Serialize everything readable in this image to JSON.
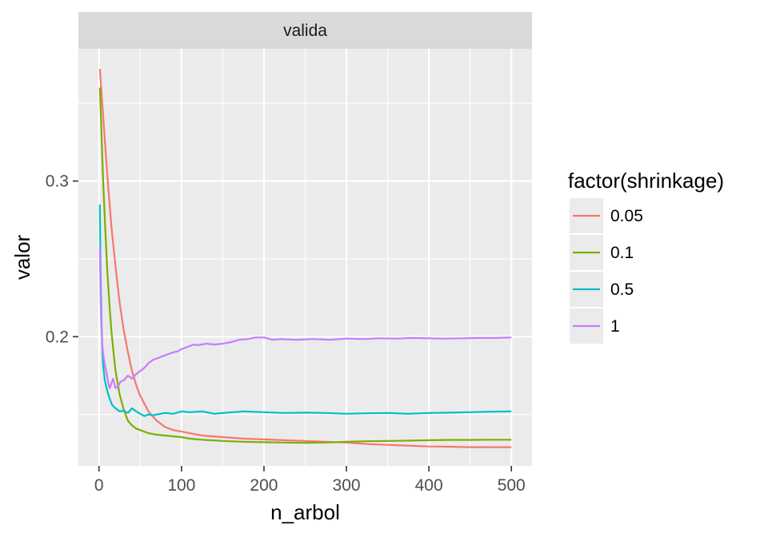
{
  "chart_data": {
    "type": "line",
    "facet_label": "valida",
    "xlabel": "n_arbol",
    "ylabel": "valor",
    "xlim": [
      -25,
      525
    ],
    "ylim": [
      0.117,
      0.385
    ],
    "x_ticks": [
      0,
      100,
      200,
      300,
      400,
      500
    ],
    "y_ticks": [
      0.2,
      0.3
    ],
    "y_minor_ticks": [
      0.15,
      0.25,
      0.35
    ],
    "x_minor_ticks": [
      50,
      150,
      250,
      350,
      450
    ],
    "grid": true,
    "legend_title": "factor(shrinkage)",
    "legend_position": "right",
    "panel_background": "#ebebeb",
    "strip_background": "#d9d9d9",
    "series": [
      {
        "name": "0.05",
        "color": "#F8766D",
        "x": [
          1,
          5,
          10,
          15,
          20,
          25,
          30,
          35,
          40,
          45,
          50,
          60,
          70,
          80,
          90,
          100,
          110,
          125,
          150,
          175,
          200,
          225,
          250,
          275,
          300,
          325,
          350,
          375,
          400,
          425,
          450,
          475,
          500
        ],
        "y": [
          0.372,
          0.342,
          0.304,
          0.271,
          0.245,
          0.222,
          0.204,
          0.19,
          0.178,
          0.169,
          0.162,
          0.152,
          0.146,
          0.142,
          0.14,
          0.139,
          0.138,
          0.1365,
          0.1355,
          0.1345,
          0.134,
          0.1335,
          0.133,
          0.1325,
          0.132,
          0.131,
          0.1305,
          0.13,
          0.1295,
          0.1293,
          0.129,
          0.129,
          0.129
        ]
      },
      {
        "name": "0.1",
        "color": "#7CAE00",
        "x": [
          1,
          3,
          5,
          8,
          10,
          13,
          15,
          18,
          20,
          25,
          30,
          35,
          40,
          45,
          50,
          60,
          70,
          80,
          90,
          100,
          110,
          125,
          150,
          175,
          200,
          225,
          250,
          275,
          300,
          325,
          350,
          375,
          400,
          425,
          450,
          475,
          500
        ],
        "y": [
          0.36,
          0.33,
          0.3,
          0.265,
          0.242,
          0.218,
          0.204,
          0.188,
          0.178,
          0.163,
          0.153,
          0.146,
          0.143,
          0.141,
          0.14,
          0.138,
          0.137,
          0.1365,
          0.136,
          0.1355,
          0.1345,
          0.1338,
          0.133,
          0.1325,
          0.1322,
          0.132,
          0.1318,
          0.132,
          0.1325,
          0.1328,
          0.133,
          0.1332,
          0.1335,
          0.1337,
          0.1337,
          0.1338,
          0.1338
        ]
      },
      {
        "name": "0.5",
        "color": "#00BFC4",
        "x": [
          1,
          2,
          3,
          4,
          5,
          7,
          10,
          13,
          16,
          20,
          25,
          30,
          35,
          40,
          45,
          50,
          55,
          60,
          65,
          70,
          80,
          90,
          100,
          110,
          125,
          140,
          150,
          175,
          200,
          225,
          250,
          275,
          300,
          325,
          350,
          375,
          400,
          425,
          450,
          475,
          500
        ],
        "y": [
          0.285,
          0.24,
          0.21,
          0.192,
          0.182,
          0.172,
          0.165,
          0.16,
          0.156,
          0.154,
          0.152,
          0.1525,
          0.151,
          0.154,
          0.152,
          0.1505,
          0.149,
          0.15,
          0.1495,
          0.15,
          0.151,
          0.1505,
          0.152,
          0.1515,
          0.152,
          0.1505,
          0.151,
          0.152,
          0.1515,
          0.151,
          0.1512,
          0.151,
          0.1505,
          0.1508,
          0.151,
          0.1505,
          0.151,
          0.1512,
          0.1515,
          0.1518,
          0.152
        ]
      },
      {
        "name": "1",
        "color": "#C77CFF",
        "x": [
          1,
          2,
          3,
          4,
          5,
          7,
          9,
          11,
          13,
          15,
          17,
          20,
          23,
          26,
          30,
          35,
          40,
          45,
          50,
          55,
          60,
          65,
          70,
          75,
          80,
          85,
          90,
          95,
          100,
          105,
          110,
          115,
          120,
          130,
          140,
          150,
          160,
          170,
          180,
          190,
          200,
          210,
          220,
          240,
          260,
          280,
          300,
          320,
          340,
          360,
          380,
          400,
          420,
          440,
          460,
          480,
          500
        ],
        "y": [
          0.258,
          0.222,
          0.205,
          0.195,
          0.189,
          0.182,
          0.177,
          0.171,
          0.167,
          0.17,
          0.173,
          0.167,
          0.168,
          0.171,
          0.172,
          0.175,
          0.173,
          0.176,
          0.178,
          0.18,
          0.183,
          0.185,
          0.186,
          0.187,
          0.188,
          0.189,
          0.19,
          0.1905,
          0.192,
          0.193,
          0.194,
          0.195,
          0.1945,
          0.1955,
          0.195,
          0.1955,
          0.1965,
          0.198,
          0.1985,
          0.1995,
          0.1995,
          0.198,
          0.1985,
          0.198,
          0.1985,
          0.198,
          0.1988,
          0.1985,
          0.199,
          0.1988,
          0.1992,
          0.199,
          0.1988,
          0.199,
          0.1992,
          0.1992,
          0.1995
        ]
      }
    ]
  }
}
